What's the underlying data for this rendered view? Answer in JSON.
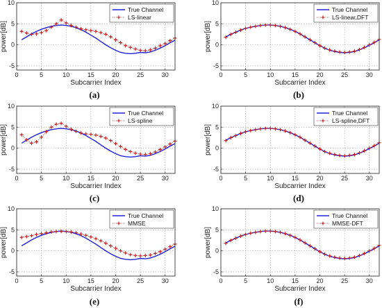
{
  "colors": {
    "true_line": "#2020d8",
    "estimate": "#c01818",
    "grid": "#9a9a9a",
    "axis": "#333333"
  },
  "chart_data": [
    {
      "type": "line",
      "caption": "(a)",
      "xlabel": "Subcarrier Index",
      "ylabel": "power[dB]",
      "xlim": [
        0,
        32
      ],
      "ylim": [
        -6,
        10
      ],
      "xticks": [
        0,
        5,
        10,
        15,
        20,
        25,
        30
      ],
      "yticks": [
        -5,
        0,
        5,
        10
      ],
      "grid": true,
      "legend_position": "top-right",
      "series": [
        {
          "name": "True Channel",
          "style": "solid",
          "x": [
            1,
            2,
            3,
            4,
            5,
            6,
            7,
            8,
            9,
            10,
            11,
            12,
            13,
            14,
            15,
            16,
            17,
            18,
            19,
            20,
            21,
            22,
            23,
            24,
            25,
            26,
            27,
            28,
            29,
            30,
            31,
            32
          ],
          "values": [
            1.2,
            1.9,
            2.6,
            3.2,
            3.7,
            4.1,
            4.4,
            4.6,
            4.7,
            4.6,
            4.4,
            4.1,
            3.6,
            3.0,
            2.3,
            1.6,
            0.8,
            0.0,
            -0.7,
            -1.3,
            -1.8,
            -2.0,
            -2.1,
            -2.0,
            -1.8,
            -1.9,
            -1.7,
            -1.3,
            -0.8,
            -0.2,
            0.5,
            1.1
          ]
        },
        {
          "name": "LS-linear",
          "style": "dotted-plus",
          "x": [
            1,
            2,
            3,
            4,
            5,
            6,
            7,
            8,
            9,
            10,
            11,
            12,
            13,
            14,
            15,
            16,
            17,
            18,
            19,
            20,
            21,
            22,
            23,
            24,
            25,
            26,
            27,
            28,
            29,
            30,
            31,
            32
          ],
          "values": [
            3.2,
            2.8,
            2.5,
            2.6,
            2.9,
            3.4,
            4.2,
            5.0,
            5.9,
            5.2,
            4.6,
            4.2,
            3.8,
            3.6,
            3.4,
            3.2,
            2.9,
            2.5,
            1.9,
            1.2,
            0.5,
            -0.2,
            -0.6,
            -1.0,
            -1.3,
            -1.4,
            -1.2,
            -0.8,
            -0.2,
            0.3,
            1.0,
            1.6
          ]
        }
      ]
    },
    {
      "type": "line",
      "caption": "(b)",
      "xlabel": "Subcarrier Index",
      "ylabel": "power[dB]",
      "xlim": [
        0,
        32
      ],
      "ylim": [
        -6,
        10
      ],
      "xticks": [
        0,
        5,
        10,
        15,
        20,
        25,
        30
      ],
      "yticks": [
        -5,
        0,
        5,
        10
      ],
      "grid": true,
      "legend_position": "top-right",
      "series": [
        {
          "name": "True Channel",
          "style": "solid",
          "x": [
            1,
            2,
            3,
            4,
            5,
            6,
            7,
            8,
            9,
            10,
            11,
            12,
            13,
            14,
            15,
            16,
            17,
            18,
            19,
            20,
            21,
            22,
            23,
            24,
            25,
            26,
            27,
            28,
            29,
            30,
            31,
            32
          ],
          "values": [
            1.9,
            2.5,
            3.0,
            3.5,
            3.9,
            4.2,
            4.4,
            4.6,
            4.7,
            4.7,
            4.6,
            4.4,
            4.1,
            3.7,
            3.2,
            2.6,
            1.9,
            1.2,
            0.5,
            -0.2,
            -0.8,
            -1.3,
            -1.6,
            -1.8,
            -1.9,
            -1.8,
            -1.6,
            -1.2,
            -0.7,
            -0.1,
            0.5,
            1.2
          ]
        },
        {
          "name": "LS-linear,DFT",
          "style": "dotted-plus",
          "x": [
            1,
            2,
            3,
            4,
            5,
            6,
            7,
            8,
            9,
            10,
            11,
            12,
            13,
            14,
            15,
            16,
            17,
            18,
            19,
            20,
            21,
            22,
            23,
            24,
            25,
            26,
            27,
            28,
            29,
            30,
            31,
            32
          ],
          "values": [
            1.8,
            2.5,
            3.0,
            3.5,
            3.9,
            4.2,
            4.4,
            4.6,
            4.7,
            4.7,
            4.6,
            4.4,
            4.1,
            3.7,
            3.2,
            2.6,
            1.9,
            1.2,
            0.5,
            -0.2,
            -0.8,
            -1.2,
            -1.5,
            -1.7,
            -1.8,
            -1.7,
            -1.5,
            -1.1,
            -0.6,
            0.0,
            0.6,
            1.3
          ]
        }
      ]
    },
    {
      "type": "line",
      "caption": "(c)",
      "xlabel": "Subcarrier Index",
      "ylabel": "power[dB]",
      "xlim": [
        0,
        32
      ],
      "ylim": [
        -6,
        10
      ],
      "xticks": [
        0,
        5,
        10,
        15,
        20,
        25,
        30
      ],
      "yticks": [
        -5,
        0,
        5,
        10
      ],
      "grid": true,
      "legend_position": "top-right",
      "series": [
        {
          "name": "True Channel",
          "style": "solid",
          "x": [
            1,
            2,
            3,
            4,
            5,
            6,
            7,
            8,
            9,
            10,
            11,
            12,
            13,
            14,
            15,
            16,
            17,
            18,
            19,
            20,
            21,
            22,
            23,
            24,
            25,
            26,
            27,
            28,
            29,
            30,
            31,
            32
          ],
          "values": [
            1.2,
            1.9,
            2.6,
            3.2,
            3.7,
            4.1,
            4.4,
            4.6,
            4.7,
            4.6,
            4.4,
            4.1,
            3.6,
            3.0,
            2.3,
            1.6,
            0.8,
            0.0,
            -0.7,
            -1.3,
            -1.8,
            -2.0,
            -2.1,
            -2.0,
            -1.8,
            -1.9,
            -1.7,
            -1.3,
            -0.8,
            -0.2,
            0.5,
            1.1
          ]
        },
        {
          "name": "LS-spline",
          "style": "dotted-plus",
          "x": [
            1,
            2,
            3,
            4,
            5,
            6,
            7,
            8,
            9,
            10,
            11,
            12,
            13,
            14,
            15,
            16,
            17,
            18,
            19,
            20,
            21,
            22,
            23,
            24,
            25,
            26,
            27,
            28,
            29,
            30,
            31,
            32
          ],
          "values": [
            3.2,
            2.0,
            1.2,
            1.5,
            2.6,
            3.9,
            5.0,
            5.7,
            5.9,
            5.2,
            4.5,
            4.0,
            3.6,
            3.4,
            3.3,
            3.1,
            2.8,
            2.4,
            1.8,
            1.1,
            0.4,
            -0.3,
            -0.8,
            -1.2,
            -1.4,
            -1.5,
            -1.3,
            -0.9,
            -0.3,
            0.3,
            1.0,
            1.7
          ]
        }
      ]
    },
    {
      "type": "line",
      "caption": "(d)",
      "xlabel": "Subcarrier Index",
      "ylabel": "power[dB]",
      "xlim": [
        0,
        32
      ],
      "ylim": [
        -6,
        10
      ],
      "xticks": [
        0,
        5,
        10,
        15,
        20,
        25,
        30
      ],
      "yticks": [
        -5,
        0,
        5,
        10
      ],
      "grid": true,
      "legend_position": "top-right",
      "series": [
        {
          "name": "True Channel",
          "style": "solid",
          "x": [
            1,
            2,
            3,
            4,
            5,
            6,
            7,
            8,
            9,
            10,
            11,
            12,
            13,
            14,
            15,
            16,
            17,
            18,
            19,
            20,
            21,
            22,
            23,
            24,
            25,
            26,
            27,
            28,
            29,
            30,
            31,
            32
          ],
          "values": [
            1.9,
            2.5,
            3.0,
            3.5,
            3.9,
            4.2,
            4.4,
            4.6,
            4.7,
            4.7,
            4.6,
            4.4,
            4.1,
            3.7,
            3.2,
            2.6,
            1.9,
            1.2,
            0.5,
            -0.2,
            -0.8,
            -1.3,
            -1.6,
            -1.8,
            -1.9,
            -1.8,
            -1.6,
            -1.2,
            -0.7,
            -0.1,
            0.5,
            1.2
          ]
        },
        {
          "name": "LS-spline,DFT",
          "style": "dotted-plus",
          "x": [
            1,
            2,
            3,
            4,
            5,
            6,
            7,
            8,
            9,
            10,
            11,
            12,
            13,
            14,
            15,
            16,
            17,
            18,
            19,
            20,
            21,
            22,
            23,
            24,
            25,
            26,
            27,
            28,
            29,
            30,
            31,
            32
          ],
          "values": [
            1.8,
            2.5,
            3.0,
            3.5,
            3.9,
            4.2,
            4.4,
            4.6,
            4.7,
            4.7,
            4.6,
            4.4,
            4.1,
            3.7,
            3.2,
            2.6,
            1.9,
            1.2,
            0.5,
            -0.2,
            -0.8,
            -1.2,
            -1.5,
            -1.7,
            -1.8,
            -1.7,
            -1.5,
            -1.1,
            -0.6,
            0.0,
            0.6,
            1.3
          ]
        }
      ]
    },
    {
      "type": "line",
      "caption": "(e)",
      "xlabel": "Subcarrier Index",
      "ylabel": "power[dB]",
      "xlim": [
        0,
        32
      ],
      "ylim": [
        -6,
        10
      ],
      "xticks": [
        0,
        5,
        10,
        15,
        20,
        25,
        30
      ],
      "yticks": [
        -5,
        0,
        5,
        10
      ],
      "grid": true,
      "legend_position": "top-right",
      "series": [
        {
          "name": "True Channel",
          "style": "solid",
          "x": [
            1,
            2,
            3,
            4,
            5,
            6,
            7,
            8,
            9,
            10,
            11,
            12,
            13,
            14,
            15,
            16,
            17,
            18,
            19,
            20,
            21,
            22,
            23,
            24,
            25,
            26,
            27,
            28,
            29,
            30,
            31,
            32
          ],
          "values": [
            1.2,
            1.9,
            2.6,
            3.2,
            3.7,
            4.1,
            4.4,
            4.6,
            4.7,
            4.6,
            4.4,
            4.1,
            3.6,
            3.0,
            2.3,
            1.6,
            0.8,
            0.0,
            -0.7,
            -1.3,
            -1.8,
            -2.0,
            -2.1,
            -2.0,
            -1.8,
            -1.9,
            -1.7,
            -1.3,
            -0.8,
            -0.2,
            0.5,
            1.1
          ]
        },
        {
          "name": "MMSE",
          "style": "dotted-plus",
          "x": [
            1,
            2,
            3,
            4,
            5,
            6,
            7,
            8,
            9,
            10,
            11,
            12,
            13,
            14,
            15,
            16,
            17,
            18,
            19,
            20,
            21,
            22,
            23,
            24,
            25,
            26,
            27,
            28,
            29,
            30,
            31,
            32
          ],
          "values": [
            3.2,
            3.4,
            3.6,
            3.9,
            4.1,
            4.3,
            4.5,
            4.6,
            4.6,
            4.6,
            4.5,
            4.3,
            4.0,
            3.7,
            3.3,
            2.9,
            2.4,
            1.8,
            1.2,
            0.6,
            0.0,
            -0.5,
            -0.9,
            -1.1,
            -1.2,
            -1.1,
            -1.0,
            -0.6,
            -0.2,
            0.4,
            1.0,
            1.6
          ]
        }
      ]
    },
    {
      "type": "line",
      "caption": "(f)",
      "xlabel": "Subcarrier Index",
      "ylabel": "power[dB]",
      "xlim": [
        0,
        32
      ],
      "ylim": [
        -6,
        10
      ],
      "xticks": [
        0,
        5,
        10,
        15,
        20,
        25,
        30
      ],
      "yticks": [
        -5,
        0,
        5,
        10
      ],
      "grid": true,
      "legend_position": "top-right",
      "series": [
        {
          "name": "True Channel",
          "style": "solid",
          "x": [
            1,
            2,
            3,
            4,
            5,
            6,
            7,
            8,
            9,
            10,
            11,
            12,
            13,
            14,
            15,
            16,
            17,
            18,
            19,
            20,
            21,
            22,
            23,
            24,
            25,
            26,
            27,
            28,
            29,
            30,
            31,
            32
          ],
          "values": [
            1.9,
            2.5,
            3.0,
            3.5,
            3.9,
            4.2,
            4.4,
            4.6,
            4.7,
            4.7,
            4.6,
            4.4,
            4.1,
            3.7,
            3.2,
            2.6,
            1.9,
            1.2,
            0.5,
            -0.2,
            -0.8,
            -1.3,
            -1.6,
            -1.8,
            -1.9,
            -1.8,
            -1.6,
            -1.2,
            -0.7,
            -0.1,
            0.5,
            1.2
          ]
        },
        {
          "name": "MMSE-DFT",
          "style": "dotted-plus",
          "x": [
            1,
            2,
            3,
            4,
            5,
            6,
            7,
            8,
            9,
            10,
            11,
            12,
            13,
            14,
            15,
            16,
            17,
            18,
            19,
            20,
            21,
            22,
            23,
            24,
            25,
            26,
            27,
            28,
            29,
            30,
            31,
            32
          ],
          "values": [
            1.8,
            2.5,
            3.0,
            3.5,
            3.9,
            4.2,
            4.4,
            4.6,
            4.7,
            4.7,
            4.6,
            4.4,
            4.1,
            3.7,
            3.2,
            2.6,
            1.9,
            1.2,
            0.5,
            -0.2,
            -0.8,
            -1.2,
            -1.5,
            -1.7,
            -1.8,
            -1.7,
            -1.5,
            -1.1,
            -0.6,
            0.0,
            0.6,
            1.3
          ]
        }
      ]
    }
  ]
}
